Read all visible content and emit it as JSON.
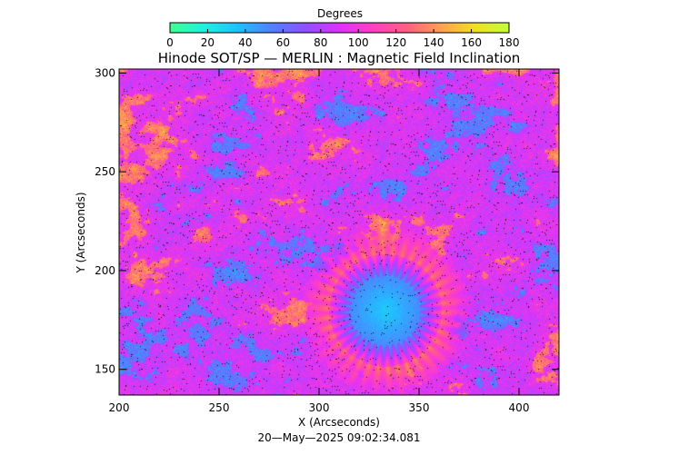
{
  "chart_data": {
    "type": "heatmap",
    "title": "Hinode SOT/SP — MERLIN : Magnetic Field Inclination",
    "xlabel": "X (Arcseconds)",
    "ylabel": "Y (Arcseconds)",
    "timestamp": "20—May—2025 09:02:34.081",
    "xlim": [
      200,
      420
    ],
    "ylim": [
      137,
      302
    ],
    "xticks": [
      "200",
      "250",
      "300",
      "350",
      "400"
    ],
    "yticks": [
      "150",
      "200",
      "250",
      "300"
    ],
    "colorbar": {
      "label": "Degrees",
      "range": [
        0,
        180
      ],
      "ticks": [
        "0",
        "20",
        "40",
        "60",
        "80",
        "100",
        "120",
        "140",
        "160",
        "180"
      ],
      "colors": [
        "#40ff90",
        "#20f0e0",
        "#20c0ff",
        "#5080ff",
        "#9050ff",
        "#e030ff",
        "#ff40c0",
        "#ff6080",
        "#ffa050",
        "#f0e020",
        "#c0ff40"
      ]
    },
    "features": [
      {
        "name": "sunspot umbra",
        "x": 333,
        "y": 180,
        "value": 30
      }
    ]
  }
}
